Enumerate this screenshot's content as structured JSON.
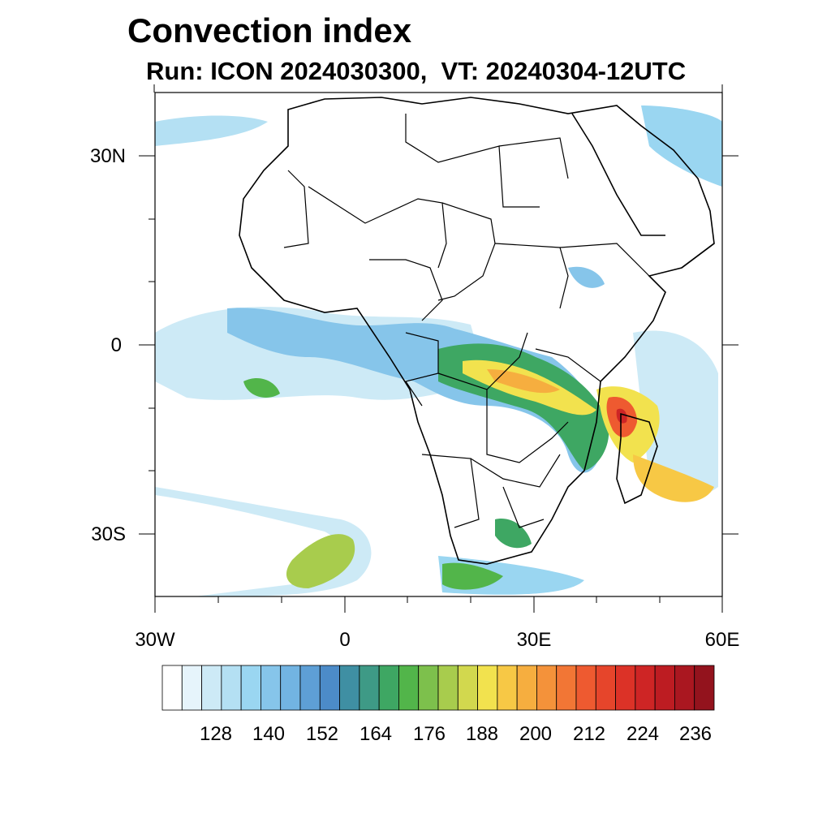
{
  "title": "Convection index",
  "subtitle": "Run: ICON 2024030300,  VT: 20240304-12UTC",
  "axes": {
    "lon_labels": [
      "30W",
      "0",
      "30E",
      "60E"
    ],
    "lat_labels": [
      "30N",
      "0",
      "30S"
    ]
  },
  "colorbar": {
    "tick_labels": [
      "128",
      "140",
      "152",
      "164",
      "176",
      "188",
      "200",
      "212",
      "224",
      "236"
    ],
    "colors": [
      "#ffffff",
      "#e6f4fb",
      "#cdeaf6",
      "#b4e0f3",
      "#9ad6f1",
      "#86c5ea",
      "#72b4e2",
      "#5e9fd6",
      "#4c8bc8",
      "#3f8fa3",
      "#3e9a86",
      "#3ea763",
      "#52b54a",
      "#7dc04c",
      "#a8cc4d",
      "#d2d84e",
      "#f2e24e",
      "#f7c845",
      "#f6ae3f",
      "#f4923a",
      "#f27635",
      "#ee5a30",
      "#e6452b",
      "#dc3227",
      "#ce2525",
      "#bd1c22",
      "#aa1720",
      "#93131d"
    ]
  },
  "colors": {
    "coast": "#000000",
    "frame": "#000000"
  }
}
